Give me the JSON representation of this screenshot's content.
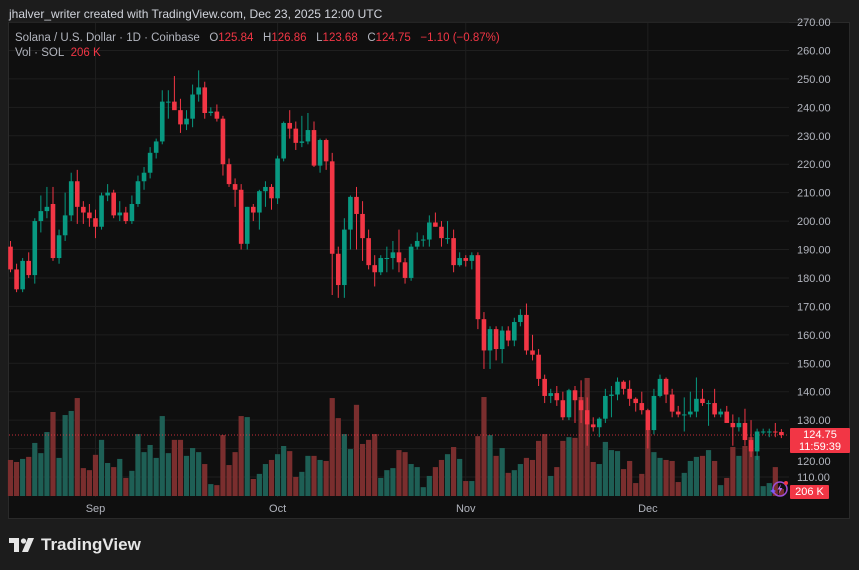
{
  "header": {
    "credit": "jhalver_writer created with TradingView.com, Dec 23, 2025 12:00 UTC"
  },
  "legend": {
    "symbol": "Solana / U.S. Dollar · 1D · Coinbase",
    "o_label": "O",
    "o": "125.84",
    "h_label": "H",
    "h": "126.86",
    "l_label": "L",
    "l": "123.68",
    "c_label": "C",
    "c": "124.75",
    "change": "−1.10 (−0.87%)",
    "vol_label": "Vol · SOL",
    "vol": "206 K"
  },
  "price_label": {
    "price": "124.75",
    "countdown": "11:59:39"
  },
  "volume_label": "206 K",
  "brand": "TradingView",
  "colors": {
    "up": "#089981",
    "down": "#f23645",
    "up_volume": "#1e5f55",
    "down_volume": "#7a2e2e",
    "background": "#0f0f0f",
    "grid": "#1f1f1f"
  },
  "icons": [
    "tradingview-logo-icon",
    "lightning-icon"
  ],
  "chart_data": {
    "type": "candlestick",
    "first_date": "2025-08-18",
    "last_date": "2025-12-23",
    "interval": "1D",
    "ylim": [
      110,
      270
    ],
    "y_ticks": [
      "110.00",
      "120.00",
      "130.00",
      "140.00",
      "150.00",
      "160.00",
      "170.00",
      "180.00",
      "190.00",
      "200.00",
      "210.00",
      "220.00",
      "230.00",
      "240.00",
      "250.00",
      "260.00",
      "270.00"
    ],
    "x_ticks": [
      {
        "label": "Sep",
        "date": "2025-09-01"
      },
      {
        "label": "Oct",
        "date": "2025-10-01"
      },
      {
        "label": "Nov",
        "date": "2025-11-01"
      },
      {
        "label": "Dec",
        "date": "2025-12-01"
      }
    ],
    "grid": true,
    "volume_unit": "K SOL",
    "ohlc": [
      [
        191,
        193,
        182,
        183
      ],
      [
        183,
        185,
        175,
        176
      ],
      [
        176,
        187,
        175,
        186
      ],
      [
        186,
        189,
        180,
        181
      ],
      [
        181,
        201,
        178,
        200
      ],
      [
        200,
        209,
        196,
        203.5
      ],
      [
        203.5,
        212,
        201,
        205
      ],
      [
        206,
        212,
        186,
        187
      ],
      [
        187,
        197,
        185,
        195
      ],
      [
        195,
        210,
        193,
        202
      ],
      [
        202,
        217,
        200,
        214
      ],
      [
        214,
        218,
        199,
        205
      ],
      [
        205,
        207,
        199,
        203
      ],
      [
        203,
        206,
        198,
        201
      ],
      [
        201,
        204,
        194,
        198
      ],
      [
        198,
        210,
        197,
        209
      ],
      [
        209,
        213,
        207,
        210
      ],
      [
        210,
        211,
        201,
        202
      ],
      [
        202,
        207,
        200,
        203
      ],
      [
        203,
        205,
        199,
        200
      ],
      [
        200,
        209,
        199,
        206
      ],
      [
        206,
        216,
        205,
        214
      ],
      [
        214,
        219,
        211,
        217
      ],
      [
        217,
        226,
        215,
        224
      ],
      [
        224,
        229,
        222,
        228
      ],
      [
        228,
        246,
        227,
        242
      ],
      [
        242,
        246,
        236,
        242
      ],
      [
        242,
        251,
        240,
        239
      ],
      [
        239,
        243,
        231,
        234
      ],
      [
        234,
        239,
        232,
        236
      ],
      [
        236,
        248,
        233,
        244.5
      ],
      [
        244.5,
        253,
        242,
        247
      ],
      [
        247,
        249,
        236,
        238
      ],
      [
        238,
        240,
        237,
        238.5
      ],
      [
        238.5,
        241,
        235,
        236
      ],
      [
        236,
        237,
        216,
        220
      ],
      [
        220,
        222,
        212,
        213
      ],
      [
        213,
        215,
        205,
        211
      ],
      [
        211,
        213,
        190,
        192
      ],
      [
        192,
        205,
        190,
        205
      ],
      [
        205,
        206,
        200,
        203
      ],
      [
        203,
        211,
        197,
        210.5
      ],
      [
        210.5,
        214,
        205,
        212
      ],
      [
        212,
        213,
        204,
        208
      ],
      [
        208,
        223,
        206,
        222
      ],
      [
        222,
        235,
        221,
        234.5
      ],
      [
        234.5,
        239,
        229,
        232.5
      ],
      [
        232.5,
        235,
        225,
        227.5
      ],
      [
        227.5,
        237,
        226,
        228
      ],
      [
        228,
        238,
        227,
        232
      ],
      [
        232,
        235,
        219,
        219.5
      ],
      [
        219.5,
        229,
        217,
        228.5
      ],
      [
        228.5,
        229,
        218,
        221
      ],
      [
        221,
        224,
        174,
        188.5
      ],
      [
        188.5,
        191,
        173,
        177.5
      ],
      [
        177.5,
        201,
        173,
        197
      ],
      [
        197,
        209,
        190,
        208.5
      ],
      [
        208.5,
        212,
        190,
        202.5
      ],
      [
        202.5,
        207,
        186,
        194
      ],
      [
        194,
        197,
        183,
        184.5
      ],
      [
        184.5,
        188,
        177,
        182
      ],
      [
        182,
        188,
        181,
        187
      ],
      [
        187,
        191,
        182,
        187
      ],
      [
        187,
        193,
        183,
        189
      ],
      [
        189,
        197,
        182,
        185.5
      ],
      [
        185.5,
        187,
        178,
        180
      ],
      [
        180,
        192,
        179,
        191
      ],
      [
        191,
        196,
        190,
        193
      ],
      [
        193.5,
        195,
        191,
        193.5
      ],
      [
        193.5,
        202,
        191,
        199.5
      ],
      [
        199.5,
        203,
        198,
        198
      ],
      [
        198,
        200,
        191,
        194
      ],
      [
        194,
        200,
        192,
        194
      ],
      [
        194,
        197,
        182,
        184.5
      ],
      [
        184.5,
        189,
        184,
        187
      ],
      [
        187,
        188,
        184,
        186
      ],
      [
        186,
        189,
        183,
        188
      ],
      [
        188,
        189,
        162,
        165.5
      ],
      [
        165.5,
        168,
        148,
        154.5
      ],
      [
        154.5,
        163,
        148,
        162
      ],
      [
        162,
        163,
        151,
        155
      ],
      [
        155,
        163,
        150,
        161.5
      ],
      [
        161.5,
        163,
        156,
        158
      ],
      [
        158,
        166,
        156,
        164.5
      ],
      [
        164.5,
        169,
        163,
        167
      ],
      [
        167,
        171,
        153,
        154.5
      ],
      [
        154.5,
        160,
        151,
        153
      ],
      [
        153,
        155,
        142,
        144.5
      ],
      [
        144.5,
        146,
        136,
        138.5
      ],
      [
        138.5,
        141,
        136,
        139.5
      ],
      [
        139.5,
        142,
        135,
        137
      ],
      [
        137,
        140,
        130,
        131
      ],
      [
        131,
        141,
        130,
        140.5
      ],
      [
        140.5,
        142,
        129,
        137
      ],
      [
        137,
        144,
        129,
        133.5
      ],
      [
        133.5,
        138,
        121,
        128.5
      ],
      [
        128.5,
        131,
        126,
        127.5
      ],
      [
        127.5,
        131,
        124,
        130.5
      ],
      [
        130.5,
        141,
        129,
        138.5
      ],
      [
        138.5,
        142,
        131,
        139
      ],
      [
        139,
        145,
        137,
        143.5
      ],
      [
        143.5,
        144,
        139,
        141
      ],
      [
        141,
        144,
        135,
        137.5
      ],
      [
        137.5,
        138,
        133,
        136
      ],
      [
        136,
        140,
        132,
        133.5
      ],
      [
        133.5,
        134,
        120,
        126.5
      ],
      [
        126.5,
        141,
        125,
        138.5
      ],
      [
        138.5,
        146,
        138,
        144.5
      ],
      [
        144.5,
        145,
        136,
        139
      ],
      [
        139,
        141,
        131,
        133
      ],
      [
        133,
        135,
        131,
        132
      ],
      [
        132,
        138,
        126,
        132
      ],
      [
        132,
        140,
        131,
        133
      ],
      [
        133,
        145,
        131,
        137.5
      ],
      [
        137.5,
        141,
        135,
        136
      ],
      [
        136,
        137,
        128,
        136
      ],
      [
        136,
        141,
        131,
        132
      ],
      [
        132,
        134,
        131,
        133
      ],
      [
        133,
        135,
        129,
        129
      ],
      [
        129,
        132,
        121,
        127.5
      ],
      [
        127.5,
        131,
        126,
        129
      ],
      [
        129,
        134,
        121,
        123
      ],
      [
        123,
        130,
        117,
        119
      ],
      [
        119,
        127,
        116,
        126
      ],
      [
        126,
        127,
        125,
        126
      ],
      [
        126,
        127,
        124,
        126
      ],
      [
        126,
        129,
        124,
        125.8
      ],
      [
        125.84,
        126.86,
        123.68,
        124.75
      ]
    ],
    "volume": [
      1060,
      1000,
      1090,
      1150,
      1560,
      1260,
      1880,
      2470,
      1120,
      2380,
      2500,
      2880,
      820,
      760,
      1210,
      1650,
      970,
      850,
      1090,
      530,
      740,
      1820,
      1290,
      1500,
      1120,
      2350,
      1260,
      1650,
      1650,
      1180,
      1410,
      1290,
      940,
      350,
      320,
      1790,
      910,
      1290,
      2350,
      2320,
      500,
      650,
      940,
      1060,
      1230,
      1470,
      1320,
      560,
      710,
      1180,
      1180,
      1060,
      1030,
      2880,
      2290,
      1820,
      1380,
      2680,
      1530,
      1650,
      1820,
      530,
      760,
      820,
      1350,
      1290,
      940,
      850,
      260,
      590,
      850,
      1060,
      1230,
      1440,
      1090,
      440,
      440,
      1760,
      2910,
      1790,
      1180,
      1410,
      680,
      760,
      940,
      1120,
      1060,
      1620,
      1820,
      590,
      850,
      1620,
      1730,
      1710,
      2910,
      3470,
      1000,
      940,
      1590,
      1350,
      1320,
      790,
      1030,
      380,
      650,
      1940,
      1290,
      1120,
      1060,
      1030,
      410,
      680,
      1030,
      1150,
      1180,
      1350,
      1030,
      320,
      530,
      1440,
      1180,
      1470,
      1730,
      1180,
      290,
      380,
      850,
      206
    ],
    "last_price": 124.75
  }
}
